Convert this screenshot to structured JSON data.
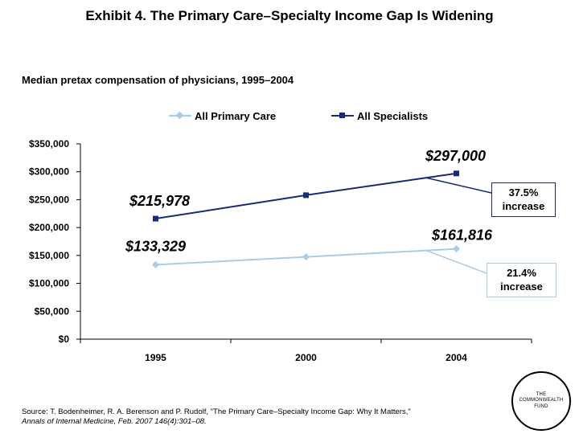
{
  "title": "Exhibit 4. The Primary Care–Specialty Income Gap Is Widening",
  "subtitle": "Median pretax compensation of physicians, 1995–2004",
  "colors": {
    "primary_care": "#a9cde9",
    "specialists": "#1a2a7a",
    "axis": "#000000"
  },
  "chart_data": {
    "type": "line",
    "title": "Median pretax compensation of physicians, 1995–2004",
    "categories": [
      "1995",
      "2000",
      "2004"
    ],
    "series": [
      {
        "name": "All Primary Care",
        "values": [
          133329,
          147500,
          161816
        ],
        "marker": "diamond",
        "color": "#a9cde9"
      },
      {
        "name": "All Specialists",
        "values": [
          215978,
          258000,
          297000
        ],
        "marker": "square",
        "color": "#1a2a7a"
      }
    ],
    "ylim": [
      0,
      350000
    ],
    "yticks": [
      0,
      50000,
      100000,
      150000,
      200000,
      250000,
      300000,
      350000
    ],
    "ytick_labels": [
      "$0",
      "$50,000",
      "$100,000",
      "$150,000",
      "$200,000",
      "$250,000",
      "$300,000",
      "$350,000"
    ],
    "xlabel": "",
    "ylabel": "",
    "grid": false,
    "legend_position": "top",
    "data_labels": [
      {
        "series": "All Specialists",
        "category": "1995",
        "text": "$215,978"
      },
      {
        "series": "All Specialists",
        "category": "2004",
        "text": "$297,000"
      },
      {
        "series": "All Primary Care",
        "category": "1995",
        "text": "$133,329"
      },
      {
        "series": "All Primary Care",
        "category": "2004",
        "text": "$161,816"
      }
    ],
    "annotations": [
      {
        "series": "All Specialists",
        "text_line1": "37.5%",
        "text_line2": "increase"
      },
      {
        "series": "All Primary Care",
        "text_line1": "21.4%",
        "text_line2": "increase"
      }
    ]
  },
  "source": {
    "text": "Source: T. Bodenheimer, R. A. Berenson and P. Rudolf, \"The Primary Care–Specialty Income Gap: Why It Matters,\"",
    "citation": "Annals of Internal Medicine, Feb. 2007 146(4):301–08."
  },
  "logo": {
    "line1": "THE",
    "line2": "COMMONWEALTH",
    "line3": "FUND"
  }
}
